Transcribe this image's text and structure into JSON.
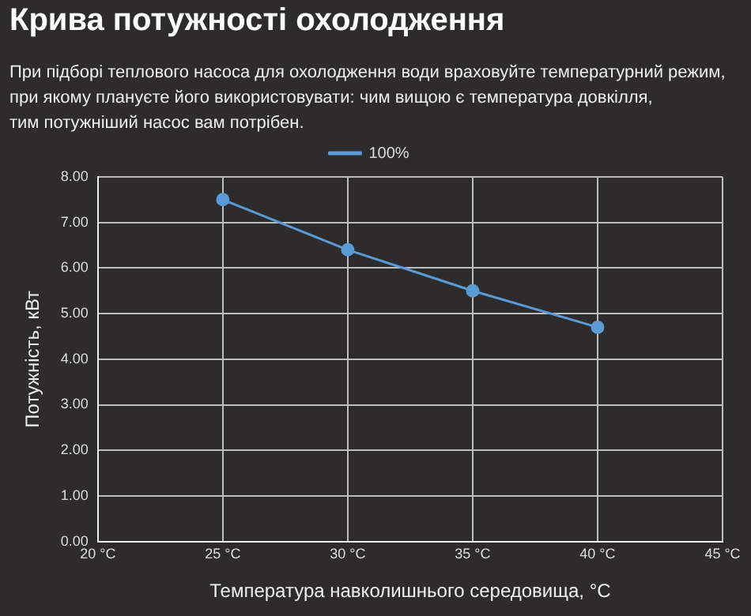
{
  "chart_data": {
    "type": "line",
    "title": "Крива потужності охолодження",
    "subtitle": "При підборі теплового насоса для охолодження води враховуйте температурний режим,\nпри якому плануєте його використовувати: чим вищою є температура довкілля,\nтим потужніший насос вам потрібен.",
    "xlabel": "Температура навколишнього середовища, °C",
    "ylabel": "Потужність, кВт",
    "x": [
      25,
      30,
      35,
      40
    ],
    "series": [
      {
        "name": "100%",
        "color": "#5b9bd5",
        "values": [
          7.5,
          6.4,
          5.5,
          4.7
        ]
      }
    ],
    "xlim": [
      20,
      45
    ],
    "xticks": [
      {
        "value": 20,
        "label": "20 °C"
      },
      {
        "value": 25,
        "label": "25 °C"
      },
      {
        "value": 30,
        "label": "30 °C"
      },
      {
        "value": 35,
        "label": "35 °C"
      },
      {
        "value": 40,
        "label": "40 °C"
      },
      {
        "value": 45,
        "label": "45 °C"
      }
    ],
    "ylim": [
      0,
      8
    ],
    "yticks": [
      {
        "value": 0,
        "label": "0.00"
      },
      {
        "value": 1,
        "label": "1.00"
      },
      {
        "value": 2,
        "label": "2.00"
      },
      {
        "value": 3,
        "label": "3.00"
      },
      {
        "value": 4,
        "label": "4.00"
      },
      {
        "value": 5,
        "label": "5.00"
      },
      {
        "value": 6,
        "label": "6.00"
      },
      {
        "value": 7,
        "label": "7.00"
      },
      {
        "value": 8,
        "label": "8.00"
      }
    ],
    "grid": true,
    "legend": "top",
    "marker": "circle",
    "line_style": "solid"
  }
}
